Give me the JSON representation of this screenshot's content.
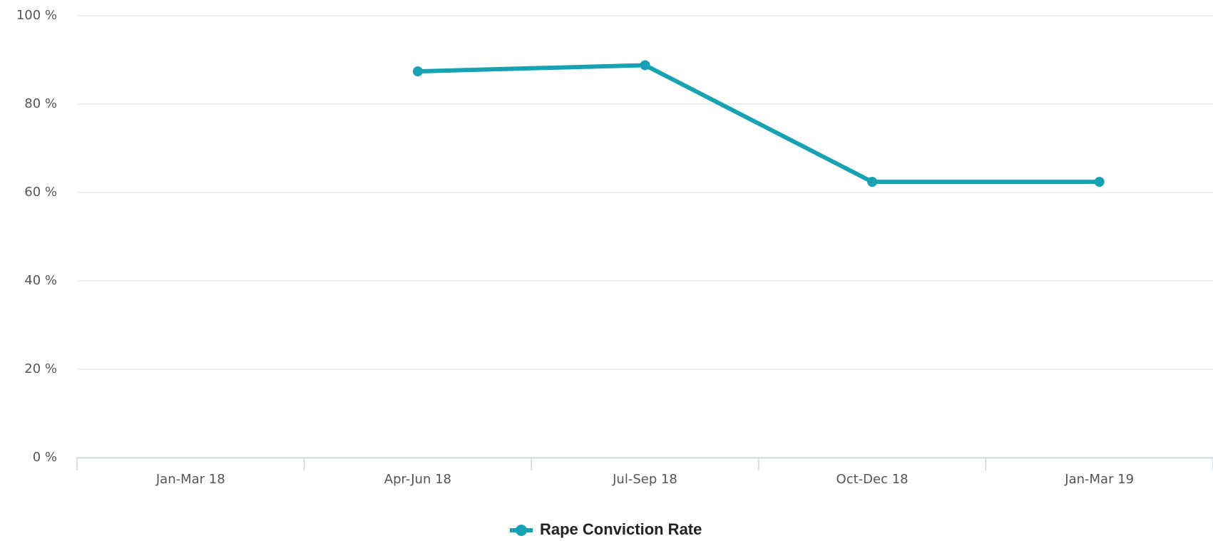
{
  "chart_data": {
    "type": "line",
    "categories": [
      "Jan-Mar 18",
      "Apr-Jun 18",
      "Jul-Sep 18",
      "Oct-Dec 18",
      "Jan-Mar 19"
    ],
    "series": [
      {
        "name": "Rape Conviction Rate",
        "color": "#17a2b3",
        "values": [
          null,
          87.4,
          88.8,
          62.4,
          62.4
        ]
      }
    ],
    "ylim": [
      0,
      100
    ],
    "yticks": [
      {
        "value": 0,
        "label": "0 %"
      },
      {
        "value": 20,
        "label": "20 %"
      },
      {
        "value": 40,
        "label": "40 %"
      },
      {
        "value": 60,
        "label": "60 %"
      },
      {
        "value": 80,
        "label": "80 %"
      },
      {
        "value": 100,
        "label": "100 %"
      }
    ],
    "grid": true,
    "legend": "bottom"
  }
}
